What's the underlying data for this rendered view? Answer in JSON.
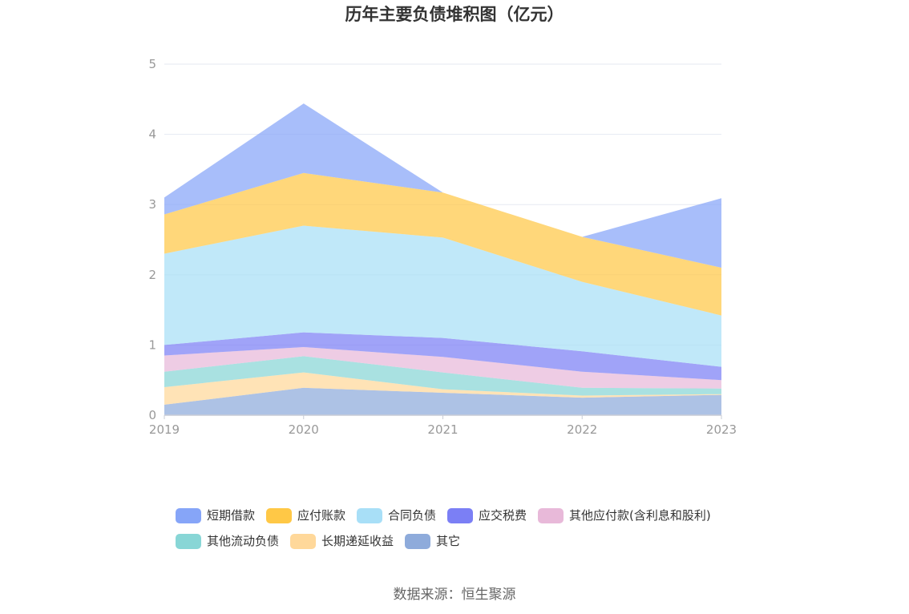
{
  "chart_data": {
    "type": "area",
    "stacked": true,
    "title": "历年主要负债堆积图（亿元）",
    "x": [
      "2019",
      "2020",
      "2021",
      "2022",
      "2023"
    ],
    "ylim": [
      0,
      5
    ],
    "yticks": [
      "0",
      "1",
      "2",
      "3",
      "4",
      "5"
    ],
    "grid": true,
    "legend_position": "bottom",
    "series": [
      {
        "name": "其它",
        "color": "#8eabdb",
        "values": [
          0.15,
          0.39,
          0.32,
          0.25,
          0.29
        ]
      },
      {
        "name": "长期递延收益",
        "color": "#ffd89a",
        "values": [
          0.25,
          0.22,
          0.05,
          0.03,
          0.01
        ]
      },
      {
        "name": "其他流动负债",
        "color": "#88d6d6",
        "values": [
          0.22,
          0.23,
          0.24,
          0.11,
          0.08
        ]
      },
      {
        "name": "其他应付款(含利息和股利)",
        "color": "#e8b9d9",
        "values": [
          0.23,
          0.13,
          0.22,
          0.23,
          0.12
        ]
      },
      {
        "name": "应交税费",
        "color": "#7b7ff5",
        "values": [
          0.15,
          0.21,
          0.27,
          0.29,
          0.19
        ]
      },
      {
        "name": "合同负债",
        "color": "#a8dff7",
        "values": [
          1.3,
          1.52,
          1.43,
          0.99,
          0.73
        ]
      },
      {
        "name": "应付账款",
        "color": "#ffc846",
        "values": [
          0.56,
          0.75,
          0.64,
          0.64,
          0.68
        ]
      },
      {
        "name": "短期借款",
        "color": "#86a5f8",
        "values": [
          0.24,
          0.99,
          0.0,
          0.0,
          0.99
        ]
      }
    ],
    "legend_order": [
      "短期借款",
      "应付账款",
      "合同负债",
      "应交税费",
      "其他应付款(含利息和股利)",
      "其他流动负债",
      "长期递延收益",
      "其它"
    ],
    "source": "数据来源：恒生聚源"
  }
}
